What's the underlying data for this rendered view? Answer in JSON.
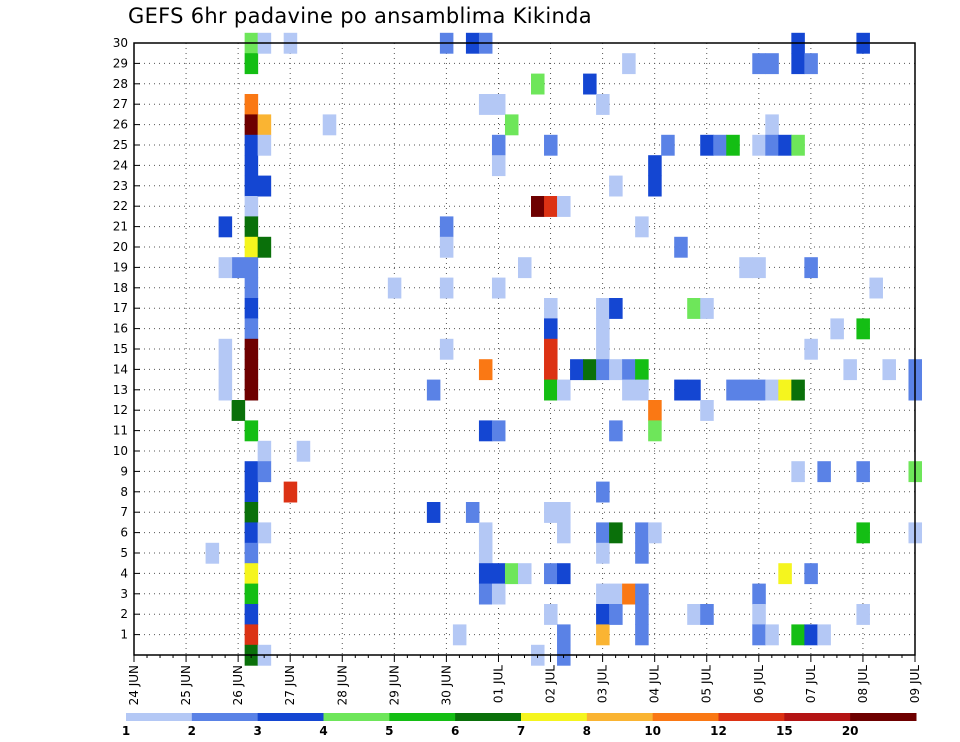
{
  "chart_data": {
    "type": "heatmap",
    "title": "GEFS 6hr padavine po ansamblima Kikinda",
    "x_tick_labels": [
      "24 JUN",
      "25 JUN",
      "26 JUN",
      "27 JUN",
      "28 JUN",
      "29 JUN",
      "30 JUN",
      "01 JUL",
      "02 JUL",
      "03 JUL",
      "04 JUL",
      "05 JUL",
      "06 JUL",
      "07 JUL",
      "08 JUL",
      "09 JUL"
    ],
    "x_range_days": [
      0,
      15
    ],
    "y_tick_labels": [
      "1",
      "2",
      "3",
      "4",
      "5",
      "6",
      "7",
      "8",
      "9",
      "10",
      "11",
      "12",
      "13",
      "14",
      "15",
      "16",
      "17",
      "18",
      "19",
      "20",
      "21",
      "22",
      "23",
      "24",
      "25",
      "26",
      "27",
      "28",
      "29",
      "30"
    ],
    "y_range": [
      0,
      30
    ],
    "grid": "dotted",
    "colorbar": {
      "labels": [
        "1",
        "2",
        "3",
        "4",
        "5",
        "6",
        "7",
        "8",
        "10",
        "12",
        "15",
        "20"
      ],
      "colors": [
        "#b4c8f5",
        "#5a82e6",
        "#1446d2",
        "#6ee65a",
        "#14be14",
        "#0a700a",
        "#f5f51e",
        "#fab432",
        "#fa7814",
        "#dc3214",
        "#b41414",
        "#6e0000"
      ]
    },
    "cells": [
      [
        2.25,
        30,
        3
      ],
      [
        2.25,
        29,
        4
      ],
      [
        2.25,
        27,
        8
      ],
      [
        2.25,
        26,
        11
      ],
      [
        2.25,
        25,
        2
      ],
      [
        2.25,
        24,
        2
      ],
      [
        2.25,
        23,
        2
      ],
      [
        2.25,
        22,
        0
      ],
      [
        2.25,
        21,
        5
      ],
      [
        2.25,
        20,
        6
      ],
      [
        2.25,
        19,
        1
      ],
      [
        2.25,
        18,
        1
      ],
      [
        2.25,
        17,
        2
      ],
      [
        2.25,
        16,
        1
      ],
      [
        2.25,
        15,
        11
      ],
      [
        2.25,
        14,
        11
      ],
      [
        2.25,
        13,
        11
      ],
      [
        2.25,
        11,
        4
      ],
      [
        2.25,
        9,
        2
      ],
      [
        2.25,
        8,
        2
      ],
      [
        2.25,
        7,
        5
      ],
      [
        2.25,
        6,
        2
      ],
      [
        2.25,
        5,
        1
      ],
      [
        2.25,
        4,
        6
      ],
      [
        2.25,
        3,
        4
      ],
      [
        2.25,
        2,
        2
      ],
      [
        2.25,
        1,
        9
      ],
      [
        2.25,
        0,
        5
      ],
      [
        2.5,
        30,
        0
      ],
      [
        2.5,
        26,
        7
      ],
      [
        2.5,
        25,
        0
      ],
      [
        2.5,
        23,
        2
      ],
      [
        2.5,
        20,
        5
      ],
      [
        2.5,
        10,
        0
      ],
      [
        2.5,
        9,
        1
      ],
      [
        2.5,
        6,
        0
      ],
      [
        2.5,
        0,
        0
      ],
      [
        2.0,
        19,
        1
      ],
      [
        2.0,
        12,
        5
      ],
      [
        1.75,
        21,
        2
      ],
      [
        1.75,
        19,
        0
      ],
      [
        1.75,
        15,
        0
      ],
      [
        1.75,
        14,
        0
      ],
      [
        1.75,
        13,
        0
      ],
      [
        1.5,
        5,
        0
      ],
      [
        3.0,
        30,
        0
      ],
      [
        3.0,
        8,
        9
      ],
      [
        3.25,
        10,
        0
      ],
      [
        3.75,
        26,
        0
      ],
      [
        5.0,
        18,
        0
      ],
      [
        6.0,
        30,
        1
      ],
      [
        6.0,
        21,
        1
      ],
      [
        6.0,
        20,
        0
      ],
      [
        6.0,
        18,
        0
      ],
      [
        6.0,
        15,
        0
      ],
      [
        6.25,
        1,
        0
      ],
      [
        5.75,
        13,
        1
      ],
      [
        5.75,
        7,
        2
      ],
      [
        6.5,
        30,
        2
      ],
      [
        6.5,
        7,
        1
      ],
      [
        6.75,
        30,
        1
      ],
      [
        6.75,
        27,
        0
      ],
      [
        6.75,
        14,
        8
      ],
      [
        6.75,
        11,
        2
      ],
      [
        6.75,
        6,
        0
      ],
      [
        6.75,
        5,
        0
      ],
      [
        6.75,
        4,
        2
      ],
      [
        6.75,
        3,
        1
      ],
      [
        7.0,
        27,
        0
      ],
      [
        7.0,
        25,
        1
      ],
      [
        7.0,
        24,
        0
      ],
      [
        7.0,
        18,
        0
      ],
      [
        7.0,
        11,
        1
      ],
      [
        7.0,
        4,
        2
      ],
      [
        7.0,
        3,
        0
      ],
      [
        7.25,
        26,
        3
      ],
      [
        7.25,
        4,
        3
      ],
      [
        7.5,
        19,
        0
      ],
      [
        7.5,
        4,
        0
      ],
      [
        7.75,
        28,
        3
      ],
      [
        7.75,
        22,
        11
      ],
      [
        7.75,
        0,
        0
      ],
      [
        8.0,
        25,
        1
      ],
      [
        8.0,
        22,
        9
      ],
      [
        8.0,
        17,
        0
      ],
      [
        8.0,
        16,
        2
      ],
      [
        8.0,
        15,
        9
      ],
      [
        8.0,
        14,
        9
      ],
      [
        8.0,
        13,
        4
      ],
      [
        8.0,
        7,
        0
      ],
      [
        8.0,
        4,
        1
      ],
      [
        8.0,
        2,
        0
      ],
      [
        8.25,
        22,
        0
      ],
      [
        8.25,
        13,
        0
      ],
      [
        8.25,
        7,
        0
      ],
      [
        8.25,
        6,
        0
      ],
      [
        8.25,
        4,
        2
      ],
      [
        8.25,
        1,
        1
      ],
      [
        8.25,
        0,
        1
      ],
      [
        8.5,
        14,
        2
      ],
      [
        8.75,
        28,
        2
      ],
      [
        8.75,
        14,
        5
      ],
      [
        9.0,
        27,
        0
      ],
      [
        9.0,
        17,
        0
      ],
      [
        9.0,
        16,
        0
      ],
      [
        9.0,
        15,
        0
      ],
      [
        9.0,
        14,
        1
      ],
      [
        9.0,
        8,
        1
      ],
      [
        9.0,
        6,
        1
      ],
      [
        9.0,
        5,
        0
      ],
      [
        9.0,
        3,
        0
      ],
      [
        9.0,
        2,
        2
      ],
      [
        9.0,
        1,
        7
      ],
      [
        9.25,
        23,
        0
      ],
      [
        9.25,
        17,
        2
      ],
      [
        9.25,
        14,
        0
      ],
      [
        9.25,
        11,
        1
      ],
      [
        9.25,
        6,
        5
      ],
      [
        9.25,
        3,
        0
      ],
      [
        9.25,
        2,
        1
      ],
      [
        9.5,
        29,
        0
      ],
      [
        9.5,
        14,
        1
      ],
      [
        9.5,
        13,
        0
      ],
      [
        9.5,
        3,
        8
      ],
      [
        9.75,
        21,
        0
      ],
      [
        9.75,
        14,
        4
      ],
      [
        9.75,
        13,
        0
      ],
      [
        9.75,
        6,
        1
      ],
      [
        9.75,
        5,
        1
      ],
      [
        9.75,
        3,
        1
      ],
      [
        9.75,
        2,
        1
      ],
      [
        9.75,
        1,
        1
      ],
      [
        10.0,
        24,
        2
      ],
      [
        10.0,
        23,
        2
      ],
      [
        10.0,
        12,
        8
      ],
      [
        10.0,
        11,
        3
      ],
      [
        10.0,
        6,
        0
      ],
      [
        10.25,
        25,
        1
      ],
      [
        10.5,
        20,
        1
      ],
      [
        10.5,
        13,
        2
      ],
      [
        10.75,
        13,
        2
      ],
      [
        10.75,
        17,
        3
      ],
      [
        10.75,
        2,
        0
      ],
      [
        11.0,
        25,
        2
      ],
      [
        11.0,
        17,
        0
      ],
      [
        11.0,
        12,
        0
      ],
      [
        11.0,
        2,
        1
      ],
      [
        11.25,
        25,
        1
      ],
      [
        11.5,
        13,
        1
      ],
      [
        11.5,
        25,
        4
      ],
      [
        11.75,
        19,
        0
      ],
      [
        11.75,
        13,
        1
      ],
      [
        12.0,
        29,
        1
      ],
      [
        12.0,
        25,
        0
      ],
      [
        12.0,
        19,
        0
      ],
      [
        12.0,
        13,
        1
      ],
      [
        12.0,
        3,
        1
      ],
      [
        12.0,
        2,
        0
      ],
      [
        12.0,
        1,
        1
      ],
      [
        12.25,
        29,
        1
      ],
      [
        12.25,
        26,
        0
      ],
      [
        12.25,
        25,
        1
      ],
      [
        12.25,
        13,
        0
      ],
      [
        12.25,
        1,
        0
      ],
      [
        12.5,
        25,
        2
      ],
      [
        12.5,
        13,
        6
      ],
      [
        12.5,
        4,
        6
      ],
      [
        12.75,
        30,
        2
      ],
      [
        12.75,
        29,
        2
      ],
      [
        12.75,
        25,
        3
      ],
      [
        12.75,
        13,
        5
      ],
      [
        12.75,
        9,
        0
      ],
      [
        12.75,
        1,
        4
      ],
      [
        13.0,
        29,
        1
      ],
      [
        13.0,
        19,
        1
      ],
      [
        13.0,
        15,
        0
      ],
      [
        13.0,
        4,
        1
      ],
      [
        13.0,
        1,
        2
      ],
      [
        13.25,
        9,
        1
      ],
      [
        13.25,
        1,
        0
      ],
      [
        13.5,
        16,
        0
      ],
      [
        13.75,
        14,
        0
      ],
      [
        14.0,
        30,
        2
      ],
      [
        14.0,
        16,
        4
      ],
      [
        14.0,
        9,
        1
      ],
      [
        14.0,
        6,
        4
      ],
      [
        14.0,
        2,
        0
      ],
      [
        14.25,
        18,
        0
      ],
      [
        14.5,
        14,
        0
      ],
      [
        15.0,
        14,
        1
      ],
      [
        15.0,
        13,
        1
      ],
      [
        15.0,
        9,
        3
      ],
      [
        15.0,
        6,
        0
      ]
    ]
  }
}
